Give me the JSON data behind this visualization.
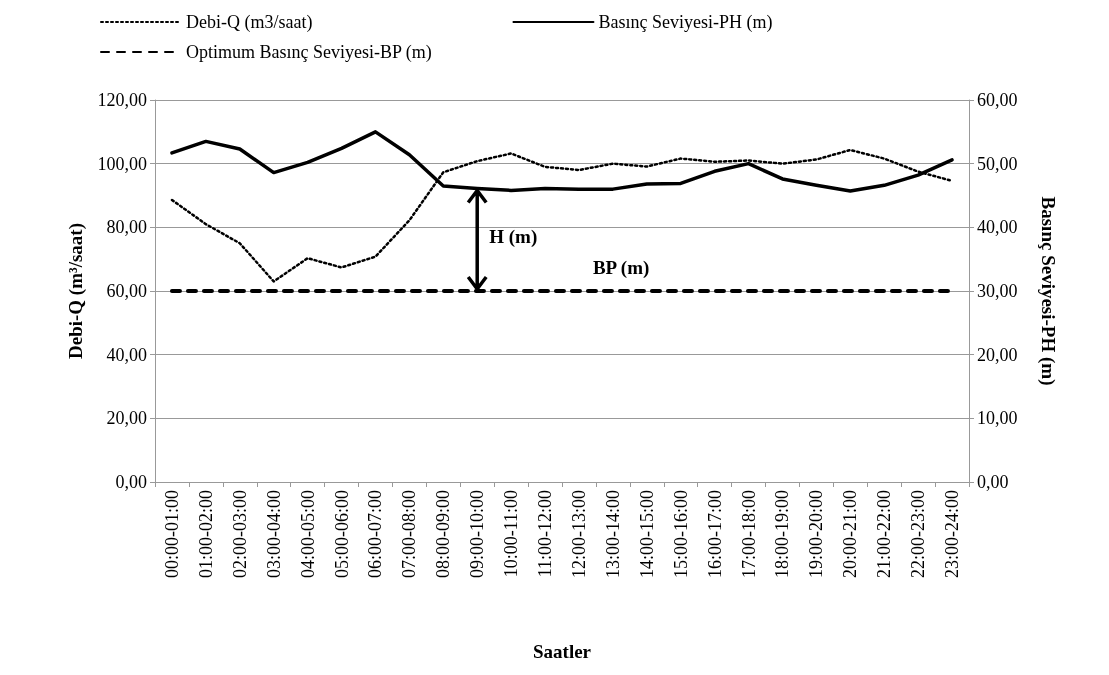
{
  "chart_data": {
    "type": "line",
    "xlabel": "Saatler",
    "ylabel": "Debi-Q (m³/saat)",
    "y2label": "Basınç Seviyesi-PH (m)",
    "categories": [
      "00:00-01:00",
      "01:00-02:00",
      "02:00-03:00",
      "03:00-04:00",
      "04:00-05:00",
      "05:00-06:00",
      "06:00-07:00",
      "07:00-08:00",
      "08:00-09:00",
      "09:00-10:00",
      "10:00-11:00",
      "11:00-12:00",
      "12:00-13:00",
      "13:00-14:00",
      "14:00-15:00",
      "15:00-16:00",
      "16:00-17:00",
      "17:00-18:00",
      "18:00-19:00",
      "19:00-20:00",
      "20:00-21:00",
      "21:00-22:00",
      "22:00-23:00",
      "23:00-24:00"
    ],
    "series": [
      {
        "name": "Debi-Q (m3/saat)",
        "color": "#000000",
        "line_style": "dotted",
        "values": [
          88.6,
          81,
          75,
          63,
          70.3,
          67.4,
          70.8,
          82.2,
          97.3,
          100.8,
          103.2,
          99,
          98,
          100,
          99.1,
          101.6,
          100.6,
          101,
          100,
          101.3,
          104.3,
          101.6,
          97.5,
          94.6
        ]
      },
      {
        "name": "Basınç Seviyesi-PH (m)",
        "color": "#000000",
        "line_style": "solid",
        "axis": "y2",
        "values": [
          51.7,
          53.5,
          52.3,
          48.6,
          50.2,
          52.4,
          55,
          51.4,
          46.5,
          46.1,
          45.8,
          46.1,
          46,
          46,
          46.8,
          46.9,
          48.8,
          50,
          47.6,
          46.6,
          45.7,
          46.6,
          48.2,
          50.6
        ]
      },
      {
        "name": "Optimum Basınç Seviyesi-BP (m)",
        "color": "#000000",
        "line_style": "dashed",
        "axis": "y2",
        "values": [
          30,
          30,
          30,
          30,
          30,
          30,
          30,
          30,
          30,
          30,
          30,
          30,
          30,
          30,
          30,
          30,
          30,
          30,
          30,
          30,
          30,
          30,
          30,
          30
        ]
      }
    ],
    "ylim": [
      0,
      120
    ],
    "yticks": [
      {
        "value": 0,
        "label": "0,00"
      },
      {
        "value": 20,
        "label": "20,00"
      },
      {
        "value": 40,
        "label": "40,00"
      },
      {
        "value": 60,
        "label": "60,00"
      },
      {
        "value": 80,
        "label": "80,00"
      },
      {
        "value": 100,
        "label": "100,00"
      },
      {
        "value": 120,
        "label": "120,00"
      }
    ],
    "y2lim": [
      0,
      60
    ],
    "y2ticks": [
      {
        "value": 0,
        "label": "0,00"
      },
      {
        "value": 10,
        "label": "10,00"
      },
      {
        "value": 20,
        "label": "20,00"
      },
      {
        "value": 30,
        "label": "30,00"
      },
      {
        "value": 40,
        "label": "40,00"
      },
      {
        "value": 50,
        "label": "50,00"
      },
      {
        "value": 60,
        "label": "60,00"
      }
    ],
    "annotations": [
      "H (m)",
      {
        "text": "BP (m)",
        "x": "13:00-14:00",
        "y": 60
      }
    ],
    "grid": "y",
    "legend": "top",
    "marker": "none"
  }
}
